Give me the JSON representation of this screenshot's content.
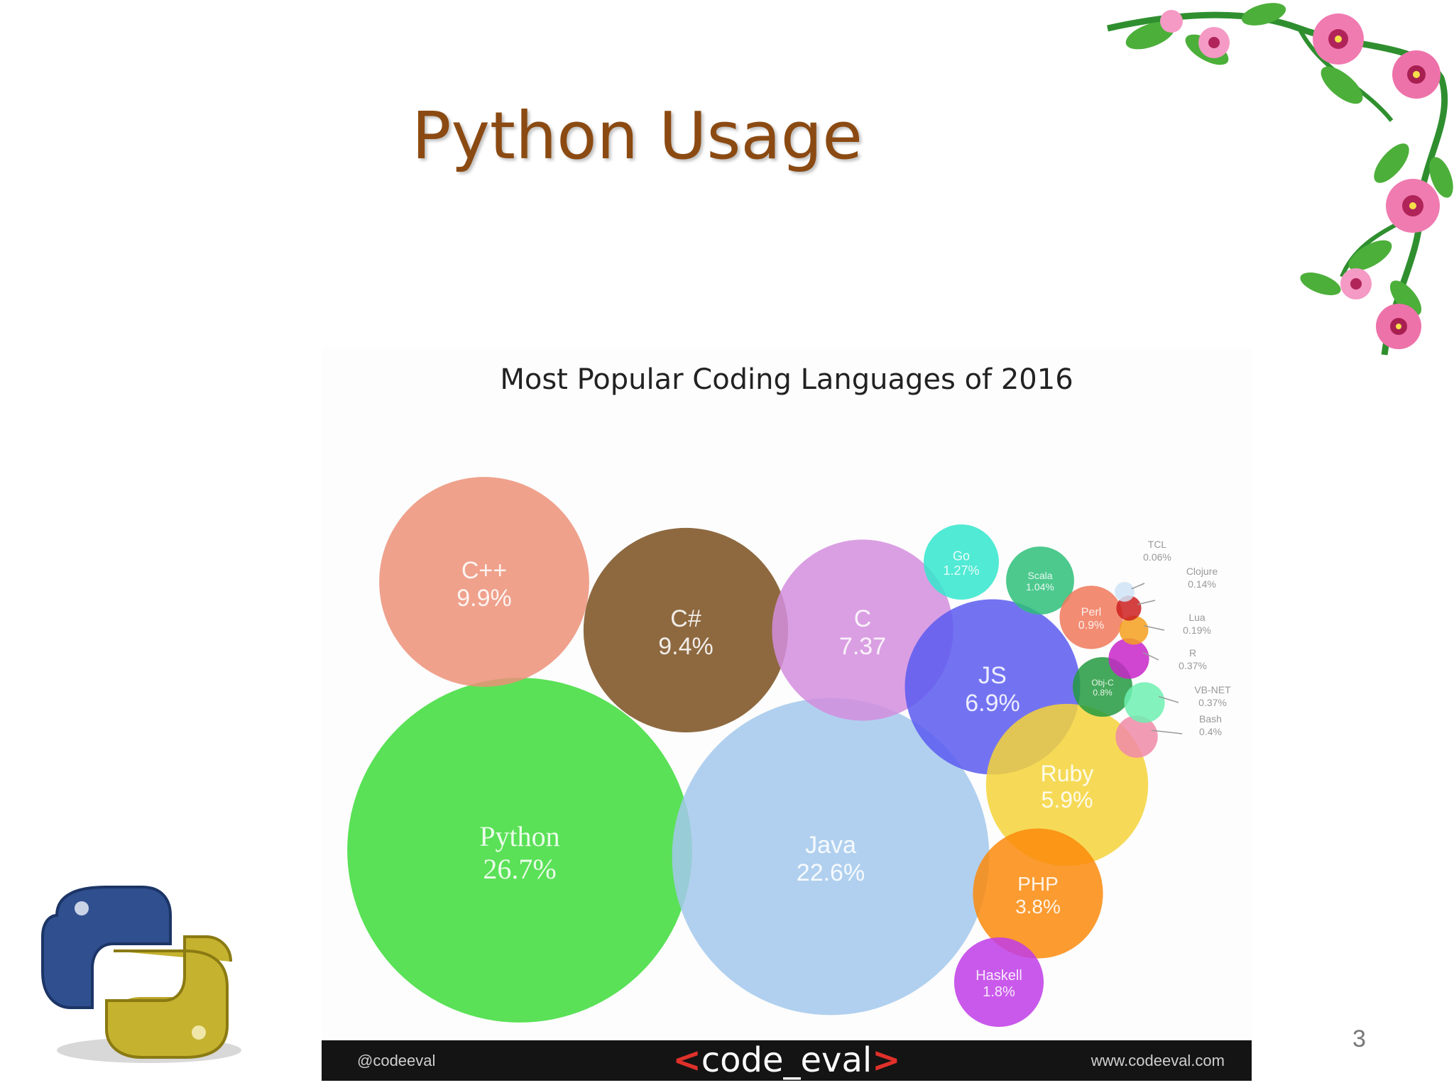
{
  "slide": {
    "title": "Python Usage",
    "page_number": "3"
  },
  "chart_footer": {
    "handle": "@codeeval",
    "logo_left": "<",
    "logo_text": "code_eval",
    "logo_right": ">",
    "url": "www.codeeval.com"
  },
  "decorations": {
    "top_right": "pink-flower-vine-icon",
    "bottom_left": "python-logo-icon"
  },
  "chart_data": {
    "type": "bubble",
    "title": "Most Popular Coding Languages of 2016",
    "series": [
      {
        "name": "Python",
        "value": "26.7%",
        "percent": 26.7,
        "color": "#3ddc3a"
      },
      {
        "name": "Java",
        "value": "22.6%",
        "percent": 22.6,
        "color": "#a3c8ec"
      },
      {
        "name": "C++",
        "value": "9.9%",
        "percent": 9.9,
        "color": "#ec9078"
      },
      {
        "name": "C#",
        "value": "9.4%",
        "percent": 9.4,
        "color": "#7a4f1e"
      },
      {
        "name": "C",
        "value": "7.37",
        "percent": 7.37,
        "color": "#d48ede"
      },
      {
        "name": "JS",
        "value": "6.9%",
        "percent": 6.9,
        "color": "#5a5af0"
      },
      {
        "name": "Ruby",
        "value": "5.9%",
        "percent": 5.9,
        "color": "#f4d43a"
      },
      {
        "name": "PHP",
        "value": "3.8%",
        "percent": 3.8,
        "color": "#fb8a0c"
      },
      {
        "name": "Haskell",
        "value": "1.8%",
        "percent": 1.8,
        "color": "#c03ce8"
      },
      {
        "name": "Go",
        "value": "1.27%",
        "percent": 1.27,
        "color": "#33e6cc"
      },
      {
        "name": "Scala",
        "value": "1.04%",
        "percent": 1.04,
        "color": "#2ebf7a"
      },
      {
        "name": "Perl",
        "value": "0.9%",
        "percent": 0.9,
        "color": "#f0785a"
      },
      {
        "name": "Obj-C",
        "value": "0.8%",
        "percent": 0.8,
        "color": "#239a40"
      },
      {
        "name": "Bash",
        "value": "0.4%",
        "percent": 0.4,
        "color": "#f08aa8"
      },
      {
        "name": "VB-NET",
        "value": "0.37%",
        "percent": 0.37,
        "color": "#6df0b0"
      },
      {
        "name": "R",
        "value": "0.37%",
        "percent": 0.37,
        "color": "#c826c8"
      },
      {
        "name": "Lua",
        "value": "0.19%",
        "percent": 0.19,
        "color": "#f5a020"
      },
      {
        "name": "Clojure",
        "value": "0.14%",
        "percent": 0.14,
        "color": "#cc2020"
      },
      {
        "name": "TCL",
        "value": "0.06%",
        "percent": 0.06,
        "color": "#cfe4f6"
      }
    ]
  }
}
